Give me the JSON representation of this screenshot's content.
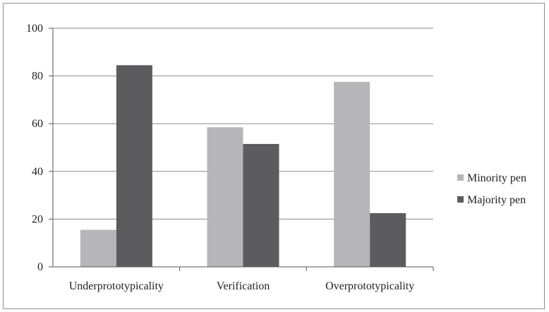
{
  "chart_data": {
    "type": "bar",
    "categories": [
      "Underprototypicality",
      "Verification",
      "Overprototypicality"
    ],
    "series": [
      {
        "name": "Minority pen",
        "values": [
          15.5,
          58.5,
          77.5
        ],
        "color": "#b6b6b8"
      },
      {
        "name": "Majority pen",
        "values": [
          84.5,
          51.5,
          22.5
        ],
        "color": "#5c5c5e"
      }
    ],
    "ylim": [
      0,
      100
    ],
    "yticks": [
      "0",
      "20",
      "40",
      "60",
      "80",
      "100"
    ],
    "grid": true,
    "legend_position": "right",
    "title": "",
    "xlabel": "",
    "ylabel": ""
  }
}
